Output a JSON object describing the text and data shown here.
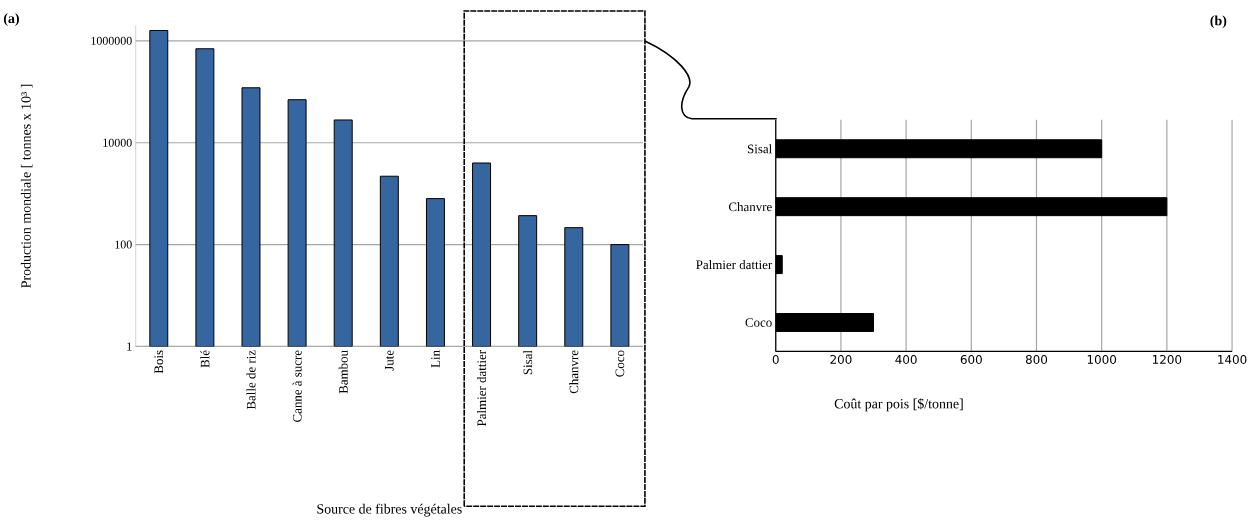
{
  "chart_data": [
    {
      "type": "bar",
      "title": "(a)",
      "xlabel": "Source de fibres végétales",
      "ylabel": "Production mondiale [ tonnes x 10³ ]",
      "categories": [
        "Bois",
        "Blé",
        "Balle de riz",
        "Canne à sucre",
        "Bambou",
        "Jute",
        "Lin",
        "Palmier dattier",
        "Sisal",
        "Chanvre",
        "Coco"
      ],
      "values": [
        1600000,
        700000,
        120000,
        70000,
        28000,
        2200,
        800,
        4000,
        370,
        215,
        100
      ],
      "color": "#3566a0",
      "log": true,
      "ylim": [
        1,
        2000000
      ],
      "yticks": [
        1,
        100,
        10000,
        1000000
      ],
      "grid": "y"
    },
    {
      "type": "bar",
      "orientation": "horizontal",
      "title": "(b)",
      "xlabel": "Coût par pois [$/tonne]",
      "categories": [
        "Sisal",
        "Chanvre",
        "Palmier dattier",
        "Coco"
      ],
      "values": [
        1000,
        1200,
        20,
        300
      ],
      "color": "#000000",
      "xlim": [
        0,
        1400
      ],
      "xticks": [
        0,
        200,
        400,
        600,
        800,
        1000,
        1200,
        1400
      ],
      "grid": "x"
    }
  ]
}
